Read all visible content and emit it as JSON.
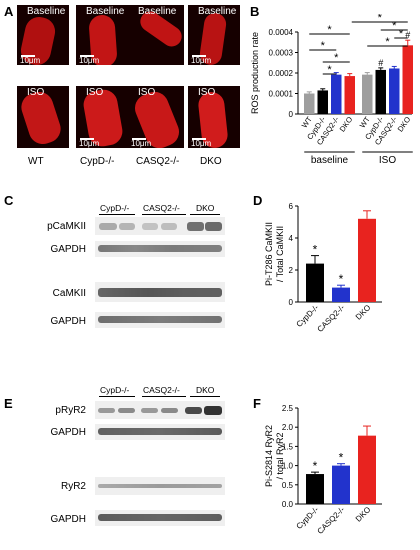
{
  "panels": {
    "A": "A",
    "B": "B",
    "C": "C",
    "D": "D",
    "E": "E",
    "F": "F"
  },
  "panelA": {
    "top_labels": [
      "Baseline",
      "Baseline",
      "Baseline",
      "Baseline"
    ],
    "bottom_labels": [
      "ISO",
      "ISO",
      "ISO",
      "ISO"
    ],
    "scale": "10μm",
    "groups": [
      "WT",
      "CypD-/-",
      "CASQ2-/-",
      "DKO"
    ]
  },
  "blotC": {
    "lanes": [
      "CypD-/-",
      "CASQ2-/-",
      "DKO"
    ],
    "rows": [
      "pCaMKII",
      "GAPDH",
      "CaMKII",
      "GAPDH"
    ]
  },
  "blotE": {
    "lanes": [
      "CypD-/-",
      "CASQ2-/-",
      "DKO"
    ],
    "rows": [
      "pRyR2",
      "GAPDH",
      "RyR2",
      "GAPDH"
    ]
  },
  "chart_data": [
    {
      "panel": "B",
      "type": "bar",
      "ylabel": "ROS production rate",
      "yticks": [
        "0",
        "0.0001",
        "0.0002",
        "0.0003",
        "0.0004"
      ],
      "ylim": [
        0,
        0.0004
      ],
      "groups": [
        "baseline",
        "ISO"
      ],
      "categories": [
        "WT",
        "CypD-/-",
        "CASQ2-/-",
        "DKO",
        "WT",
        "CypD-/-",
        "CASQ2-/-",
        "DKO"
      ],
      "values": [
        0.0001,
        0.000115,
        0.000192,
        0.000185,
        0.000192,
        0.000215,
        0.000222,
        0.000335
      ],
      "errors": [
        8e-06,
        8e-06,
        1e-05,
        1.2e-05,
        1e-05,
        1e-05,
        1e-05,
        2.5e-05
      ],
      "colors": [
        "#9e9e9e",
        "#000000",
        "#2233cc",
        "#e8231f",
        "#9e9e9e",
        "#000000",
        "#2233cc",
        "#e8231f"
      ],
      "annotations": {
        "star": "*",
        "hash": "#"
      }
    },
    {
      "panel": "D",
      "type": "bar",
      "ylabel": "Pi-T286 CaMKII / Total CaMKII",
      "yticks": [
        "0",
        "2",
        "4",
        "6"
      ],
      "ylim": [
        0,
        6
      ],
      "categories": [
        "CypD-/-",
        "CASQ2-/-",
        "DKO"
      ],
      "values": [
        2.4,
        0.9,
        5.2
      ],
      "errors": [
        0.5,
        0.15,
        0.5
      ],
      "colors": [
        "#000000",
        "#2233cc",
        "#e8231f"
      ],
      "stars": [
        "*",
        "*",
        ""
      ]
    },
    {
      "panel": "F",
      "type": "bar",
      "ylabel": "Pi-S2814 RyR2 / total RyR2",
      "yticks": [
        "0.0",
        "0.5",
        "1.0",
        "1.5",
        "2.0",
        "2.5"
      ],
      "ylim": [
        0,
        2.5
      ],
      "categories": [
        "CypD-/-",
        "CASQ2-/-",
        "DKO"
      ],
      "values": [
        0.78,
        1.0,
        1.78
      ],
      "errors": [
        0.05,
        0.05,
        0.25
      ],
      "colors": [
        "#000000",
        "#2233cc",
        "#e8231f"
      ],
      "stars": [
        "*",
        "*",
        ""
      ]
    }
  ]
}
